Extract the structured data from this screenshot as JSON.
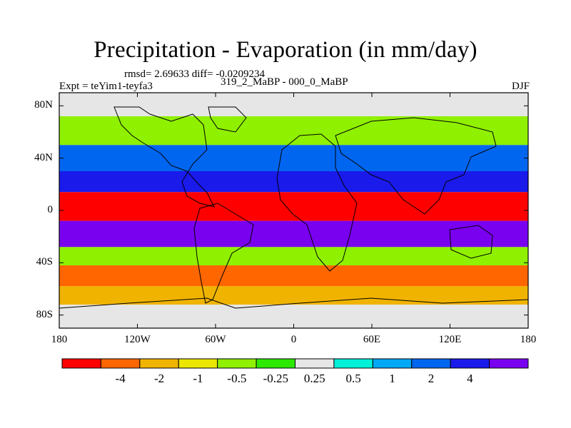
{
  "title": "Precipitation - Evaporation (in mm/day)",
  "stats_line": "rmsd= 2.69633  diff= -0.0209234",
  "experiment": "Expt = teYim1-teyfa3",
  "period": "319_2_MaBP - 000_0_MaBP",
  "season": "DJF",
  "map": {
    "lon_range": [
      -180,
      180
    ],
    "lat_range": [
      -90,
      90
    ],
    "x_ticks": [
      "180",
      "120W",
      "60W",
      "0",
      "60E",
      "120E",
      "180"
    ],
    "y_ticks": [
      "80N",
      "40N",
      "0",
      "40S",
      "80S"
    ],
    "zonal_bands": [
      {
        "lat_top": 90,
        "lat_bottom": 72,
        "class": "0"
      },
      {
        "lat_top": 72,
        "lat_bottom": 50,
        "class": "-0.5 to -0.25"
      },
      {
        "lat_top": 50,
        "lat_bottom": 30,
        "class": "1 to 2"
      },
      {
        "lat_top": 30,
        "lat_bottom": 14,
        "class": "2 to 4"
      },
      {
        "lat_top": 14,
        "lat_bottom": -8,
        "class": "< -4"
      },
      {
        "lat_top": -8,
        "lat_bottom": -28,
        "class": "> 4"
      },
      {
        "lat_top": -28,
        "lat_bottom": -42,
        "class": "-0.5 to -0.25"
      },
      {
        "lat_top": -42,
        "lat_bottom": -58,
        "class": "-4 to -2"
      },
      {
        "lat_top": -58,
        "lat_bottom": -72,
        "class": "-2 to -1"
      },
      {
        "lat_top": -72,
        "lat_bottom": -90,
        "class": "0"
      }
    ]
  },
  "colorbar": {
    "colors": [
      "#ff0000",
      "#ff6600",
      "#f0b400",
      "#ebe600",
      "#8ff000",
      "#2de800",
      "#e6e6e6",
      "#00f0d8",
      "#00a8f5",
      "#0066f0",
      "#1a1aeb",
      "#7a00f0"
    ],
    "labels": [
      "-4",
      "-2",
      "-1",
      "-0.5",
      "-0.25",
      "0.25",
      "0.5",
      "1",
      "2",
      "4"
    ]
  }
}
